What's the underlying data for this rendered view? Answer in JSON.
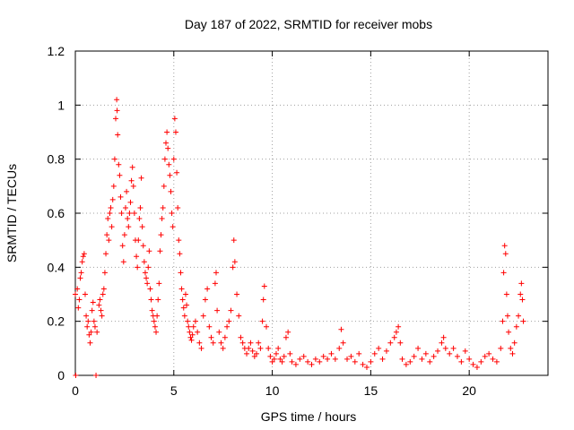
{
  "chart_data": {
    "type": "scatter",
    "title": "Day 187 of 2022, SRMTID for receiver mobs",
    "xlabel": "GPS time / hours",
    "ylabel": "SRMTID / TECUs",
    "xlim": [
      0,
      24
    ],
    "ylim": [
      0,
      1.2
    ],
    "xticks": [
      0,
      5,
      10,
      15,
      20
    ],
    "xtick_labels": [
      "0",
      "5",
      "10",
      "15",
      "20"
    ],
    "yticks": [
      0,
      0.2,
      0.4,
      0.6,
      0.8,
      1.0,
      1.2
    ],
    "ytick_labels": [
      "0",
      "0.2",
      "0.4",
      "0.6",
      "0.8",
      "1",
      "1.2"
    ],
    "grid": true,
    "marker": "plus",
    "color": "#ff0000",
    "series": [
      {
        "name": "SRMTID",
        "points": [
          [
            0.0,
            0.3
          ],
          [
            0.1,
            0.32
          ],
          [
            0.15,
            0.25
          ],
          [
            0.2,
            0.28
          ],
          [
            0.25,
            0.36
          ],
          [
            0.3,
            0.38
          ],
          [
            0.35,
            0.42
          ],
          [
            0.4,
            0.44
          ],
          [
            0.45,
            0.45
          ],
          [
            0.5,
            0.3
          ],
          [
            0.55,
            0.22
          ],
          [
            0.6,
            0.18
          ],
          [
            0.65,
            0.2
          ],
          [
            0.7,
            0.15
          ],
          [
            0.75,
            0.12
          ],
          [
            0.8,
            0.16
          ],
          [
            0.85,
            0.24
          ],
          [
            0.9,
            0.27
          ],
          [
            0.95,
            0.2
          ],
          [
            1.0,
            0.18
          ],
          [
            1.1,
            0.16
          ],
          [
            1.2,
            0.26
          ],
          [
            1.25,
            0.28
          ],
          [
            1.3,
            0.24
          ],
          [
            1.35,
            0.22
          ],
          [
            1.4,
            0.3
          ],
          [
            1.45,
            0.32
          ],
          [
            1.5,
            0.38
          ],
          [
            1.55,
            0.45
          ],
          [
            1.6,
            0.52
          ],
          [
            1.65,
            0.58
          ],
          [
            1.7,
            0.5
          ],
          [
            1.75,
            0.6
          ],
          [
            1.8,
            0.62
          ],
          [
            1.85,
            0.55
          ],
          [
            1.9,
            0.65
          ],
          [
            1.95,
            0.7
          ],
          [
            2.0,
            0.8
          ],
          [
            2.05,
            0.95
          ],
          [
            2.1,
            1.02
          ],
          [
            2.12,
            0.98
          ],
          [
            2.15,
            0.89
          ],
          [
            2.2,
            0.78
          ],
          [
            2.25,
            0.74
          ],
          [
            2.3,
            0.66
          ],
          [
            2.35,
            0.6
          ],
          [
            2.4,
            0.48
          ],
          [
            2.45,
            0.42
          ],
          [
            2.5,
            0.52
          ],
          [
            2.55,
            0.62
          ],
          [
            2.6,
            0.68
          ],
          [
            2.65,
            0.58
          ],
          [
            2.7,
            0.55
          ],
          [
            2.75,
            0.6
          ],
          [
            2.8,
            0.64
          ],
          [
            2.85,
            0.72
          ],
          [
            2.9,
            0.77
          ],
          [
            2.95,
            0.7
          ],
          [
            3.0,
            0.6
          ],
          [
            3.05,
            0.5
          ],
          [
            3.1,
            0.44
          ],
          [
            3.15,
            0.4
          ],
          [
            3.2,
            0.5
          ],
          [
            3.25,
            0.58
          ],
          [
            3.3,
            0.62
          ],
          [
            3.35,
            0.73
          ],
          [
            3.4,
            0.55
          ],
          [
            3.45,
            0.48
          ],
          [
            3.5,
            0.42
          ],
          [
            3.55,
            0.38
          ],
          [
            3.6,
            0.36
          ],
          [
            3.65,
            0.34
          ],
          [
            3.7,
            0.4
          ],
          [
            3.75,
            0.46
          ],
          [
            3.8,
            0.32
          ],
          [
            3.85,
            0.28
          ],
          [
            3.9,
            0.24
          ],
          [
            3.95,
            0.22
          ],
          [
            4.0,
            0.2
          ],
          [
            4.05,
            0.18
          ],
          [
            4.1,
            0.16
          ],
          [
            4.15,
            0.22
          ],
          [
            4.2,
            0.28
          ],
          [
            4.25,
            0.34
          ],
          [
            4.3,
            0.46
          ],
          [
            4.35,
            0.52
          ],
          [
            4.4,
            0.58
          ],
          [
            4.45,
            0.62
          ],
          [
            4.5,
            0.7
          ],
          [
            4.55,
            0.8
          ],
          [
            4.6,
            0.86
          ],
          [
            4.65,
            0.9
          ],
          [
            4.7,
            0.84
          ],
          [
            4.75,
            0.78
          ],
          [
            4.8,
            0.74
          ],
          [
            4.85,
            0.68
          ],
          [
            4.9,
            0.6
          ],
          [
            4.95,
            0.55
          ],
          [
            5.0,
            0.8
          ],
          [
            5.05,
            0.95
          ],
          [
            5.1,
            0.9
          ],
          [
            5.15,
            0.75
          ],
          [
            5.2,
            0.62
          ],
          [
            5.25,
            0.5
          ],
          [
            5.3,
            0.45
          ],
          [
            5.35,
            0.38
          ],
          [
            5.4,
            0.32
          ],
          [
            5.45,
            0.28
          ],
          [
            5.5,
            0.25
          ],
          [
            5.55,
            0.22
          ],
          [
            5.6,
            0.3
          ],
          [
            5.65,
            0.26
          ],
          [
            5.7,
            0.2
          ],
          [
            5.75,
            0.18
          ],
          [
            5.8,
            0.16
          ],
          [
            5.85,
            0.14
          ],
          [
            5.9,
            0.13
          ],
          [
            5.95,
            0.15
          ],
          [
            6.0,
            0.18
          ],
          [
            6.1,
            0.2
          ],
          [
            6.2,
            0.16
          ],
          [
            6.3,
            0.12
          ],
          [
            6.4,
            0.1
          ],
          [
            6.5,
            0.22
          ],
          [
            6.6,
            0.28
          ],
          [
            6.7,
            0.32
          ],
          [
            6.8,
            0.18
          ],
          [
            6.9,
            0.14
          ],
          [
            7.0,
            0.12
          ],
          [
            7.1,
            0.34
          ],
          [
            7.15,
            0.38
          ],
          [
            7.2,
            0.24
          ],
          [
            7.3,
            0.16
          ],
          [
            7.4,
            0.12
          ],
          [
            7.5,
            0.1
          ],
          [
            7.6,
            0.14
          ],
          [
            7.7,
            0.18
          ],
          [
            7.8,
            0.2
          ],
          [
            7.9,
            0.24
          ],
          [
            8.0,
            0.4
          ],
          [
            8.05,
            0.5
          ],
          [
            8.1,
            0.42
          ],
          [
            8.2,
            0.3
          ],
          [
            8.3,
            0.22
          ],
          [
            8.4,
            0.14
          ],
          [
            8.5,
            0.12
          ],
          [
            8.6,
            0.1
          ],
          [
            8.7,
            0.08
          ],
          [
            8.8,
            0.1
          ],
          [
            8.9,
            0.12
          ],
          [
            9.0,
            0.09
          ],
          [
            9.1,
            0.07
          ],
          [
            9.2,
            0.08
          ],
          [
            9.3,
            0.12
          ],
          [
            9.4,
            0.1
          ],
          [
            9.5,
            0.2
          ],
          [
            9.55,
            0.28
          ],
          [
            9.6,
            0.33
          ],
          [
            9.7,
            0.18
          ],
          [
            9.8,
            0.1
          ],
          [
            9.9,
            0.07
          ],
          [
            10.0,
            0.05
          ],
          [
            10.1,
            0.06
          ],
          [
            10.2,
            0.08
          ],
          [
            10.3,
            0.1
          ],
          [
            10.4,
            0.06
          ],
          [
            10.5,
            0.05
          ],
          [
            10.6,
            0.07
          ],
          [
            10.7,
            0.14
          ],
          [
            10.8,
            0.16
          ],
          [
            10.9,
            0.08
          ],
          [
            11.0,
            0.05
          ],
          [
            11.2,
            0.04
          ],
          [
            11.4,
            0.06
          ],
          [
            11.6,
            0.07
          ],
          [
            11.8,
            0.05
          ],
          [
            12.0,
            0.04
          ],
          [
            12.2,
            0.06
          ],
          [
            12.4,
            0.05
          ],
          [
            12.6,
            0.07
          ],
          [
            12.8,
            0.06
          ],
          [
            13.0,
            0.08
          ],
          [
            13.2,
            0.06
          ],
          [
            13.4,
            0.1
          ],
          [
            13.5,
            0.17
          ],
          [
            13.6,
            0.12
          ],
          [
            13.8,
            0.06
          ],
          [
            14.0,
            0.07
          ],
          [
            14.2,
            0.05
          ],
          [
            14.4,
            0.08
          ],
          [
            14.6,
            0.04
          ],
          [
            14.8,
            0.03
          ],
          [
            15.0,
            0.05
          ],
          [
            15.2,
            0.08
          ],
          [
            15.4,
            0.1
          ],
          [
            15.6,
            0.06
          ],
          [
            15.8,
            0.09
          ],
          [
            16.0,
            0.12
          ],
          [
            16.2,
            0.14
          ],
          [
            16.3,
            0.16
          ],
          [
            16.4,
            0.18
          ],
          [
            16.5,
            0.12
          ],
          [
            16.6,
            0.06
          ],
          [
            16.8,
            0.04
          ],
          [
            17.0,
            0.05
          ],
          [
            17.2,
            0.07
          ],
          [
            17.4,
            0.1
          ],
          [
            17.6,
            0.06
          ],
          [
            17.8,
            0.08
          ],
          [
            18.0,
            0.05
          ],
          [
            18.2,
            0.07
          ],
          [
            18.4,
            0.09
          ],
          [
            18.6,
            0.12
          ],
          [
            18.7,
            0.14
          ],
          [
            18.8,
            0.1
          ],
          [
            19.0,
            0.08
          ],
          [
            19.2,
            0.1
          ],
          [
            19.4,
            0.07
          ],
          [
            19.6,
            0.05
          ],
          [
            19.8,
            0.09
          ],
          [
            20.0,
            0.06
          ],
          [
            20.2,
            0.04
          ],
          [
            20.4,
            0.03
          ],
          [
            20.6,
            0.05
          ],
          [
            20.8,
            0.07
          ],
          [
            21.0,
            0.08
          ],
          [
            21.2,
            0.06
          ],
          [
            21.4,
            0.05
          ],
          [
            21.6,
            0.1
          ],
          [
            21.7,
            0.2
          ],
          [
            21.75,
            0.38
          ],
          [
            21.8,
            0.48
          ],
          [
            21.85,
            0.45
          ],
          [
            21.9,
            0.3
          ],
          [
            21.95,
            0.22
          ],
          [
            22.0,
            0.16
          ],
          [
            22.1,
            0.1
          ],
          [
            22.2,
            0.08
          ],
          [
            22.3,
            0.12
          ],
          [
            22.4,
            0.18
          ],
          [
            22.5,
            0.22
          ],
          [
            22.6,
            0.3
          ],
          [
            22.65,
            0.34
          ],
          [
            22.7,
            0.28
          ],
          [
            22.75,
            0.2
          ],
          [
            0.02,
            0.0
          ],
          [
            1.05,
            0.0
          ]
        ]
      }
    ]
  }
}
